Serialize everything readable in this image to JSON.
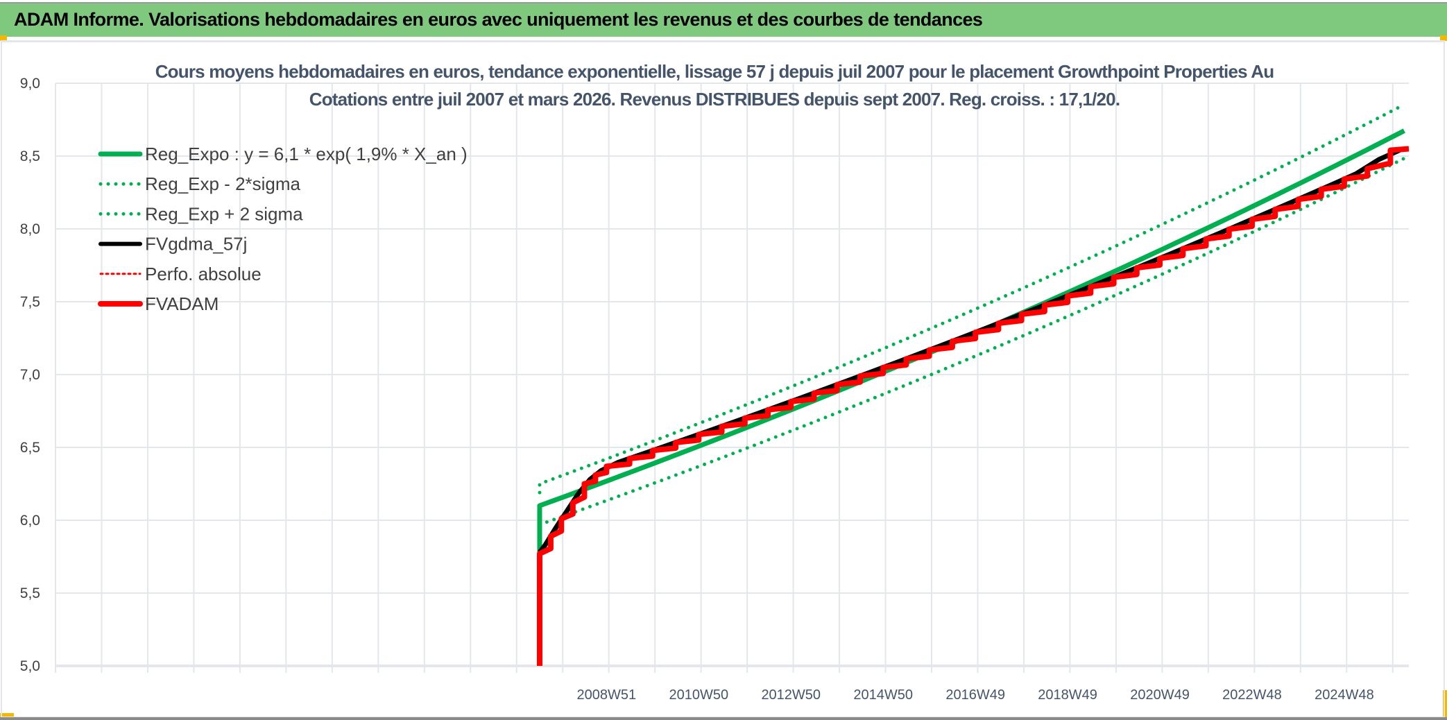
{
  "header": {
    "title": "ADAM Informe. Valorisations hebdomadaires en euros avec uniquement les revenus et des courbes de tendances"
  },
  "chart_data": {
    "type": "line",
    "title_lines": [
      "Cours moyens hebdomadaires en euros, tendance exponentielle, lissage 57 j depuis juil 2007 pour le placement Growthpoint Properties Au",
      "Cotations entre juil 2007 et mars 2026. Revenus DISTRIBUES depuis sept 2007. Reg. croiss. : 17,1/20."
    ],
    "xlabel": "",
    "ylabel": "",
    "ylim": [
      5.0,
      9.0
    ],
    "yticks": [
      "5,0",
      "5,5",
      "6,0",
      "6,5",
      "7,0",
      "7,5",
      "8,0",
      "8,5",
      "9,0"
    ],
    "ytick_values": [
      5.0,
      5.5,
      6.0,
      6.5,
      7.0,
      7.5,
      8.0,
      8.5,
      9.0
    ],
    "xlim_years": [
      1997.0,
      2026.35
    ],
    "xticks": [
      {
        "label": "2008W51",
        "year": 2008.95
      },
      {
        "label": "2010W50",
        "year": 2010.95
      },
      {
        "label": "2012W50",
        "year": 2012.95
      },
      {
        "label": "2014W50",
        "year": 2014.95
      },
      {
        "label": "2016W49",
        "year": 2016.95
      },
      {
        "label": "2018W49",
        "year": 2018.95
      },
      {
        "label": "2020W49",
        "year": 2020.95
      },
      {
        "label": "2022W48",
        "year": 2022.95
      },
      {
        "label": "2024W48",
        "year": 2024.95
      }
    ],
    "grid": true,
    "legend_position": "top-left",
    "series": [
      {
        "name": "Reg_Expo : y = 6,1 * exp( 1,9% *  X_an )",
        "color": "#00b050",
        "style": "solid-thick",
        "start": [
          2007.5,
          6.1
        ],
        "end": [
          2026.35,
          8.69
        ]
      },
      {
        "name": "Reg_Exp - 2*sigma",
        "color": "#00b050",
        "style": "dotted",
        "start": [
          2007.5,
          5.97
        ],
        "end": [
          2026.35,
          8.5
        ]
      },
      {
        "name": "Reg_Exp + 2 sigma",
        "color": "#00b050",
        "style": "dotted",
        "start": [
          2007.5,
          6.25
        ],
        "end": [
          2026.35,
          8.87
        ]
      },
      {
        "name": "FVgdma_57j",
        "color": "#000000",
        "style": "solid"
      },
      {
        "name": "Perfo. absolue",
        "color": "#ff0000",
        "style": "dotted"
      },
      {
        "name": "FVADAM",
        "color": "#ff0000",
        "style": "solid-thick",
        "steps": [
          [
            2007.5,
            5.77
          ],
          [
            2007.74,
            5.89
          ],
          [
            2007.97,
            6.01
          ],
          [
            2008.22,
            6.12
          ],
          [
            2008.47,
            6.25
          ],
          [
            2008.71,
            6.31
          ],
          [
            2008.95,
            6.37
          ],
          [
            2009.45,
            6.424
          ],
          [
            2009.95,
            6.479
          ],
          [
            2010.45,
            6.534
          ],
          [
            2010.95,
            6.589
          ],
          [
            2011.45,
            6.645
          ],
          [
            2011.95,
            6.701
          ],
          [
            2012.45,
            6.758
          ],
          [
            2012.95,
            6.815
          ],
          [
            2013.45,
            6.873
          ],
          [
            2013.95,
            6.931
          ],
          [
            2014.45,
            6.99
          ],
          [
            2014.95,
            7.049
          ],
          [
            2015.45,
            7.108
          ],
          [
            2015.95,
            7.169
          ],
          [
            2016.45,
            7.229
          ],
          [
            2016.95,
            7.29
          ],
          [
            2017.45,
            7.352
          ],
          [
            2017.95,
            7.414
          ],
          [
            2018.45,
            7.477
          ],
          [
            2018.95,
            7.54
          ],
          [
            2019.45,
            7.604
          ],
          [
            2019.95,
            7.668
          ],
          [
            2020.45,
            7.733
          ],
          [
            2020.95,
            7.798
          ],
          [
            2021.45,
            7.864
          ],
          [
            2021.95,
            7.931
          ],
          [
            2022.45,
            7.998
          ],
          [
            2022.95,
            8.066
          ],
          [
            2023.45,
            8.134
          ],
          [
            2023.95,
            8.203
          ],
          [
            2024.45,
            8.272
          ],
          [
            2024.95,
            8.342
          ],
          [
            2025.45,
            8.413
          ],
          [
            2025.95,
            8.54
          ]
        ],
        "end_year": 2026.35,
        "start_from": 5.0
      }
    ]
  }
}
